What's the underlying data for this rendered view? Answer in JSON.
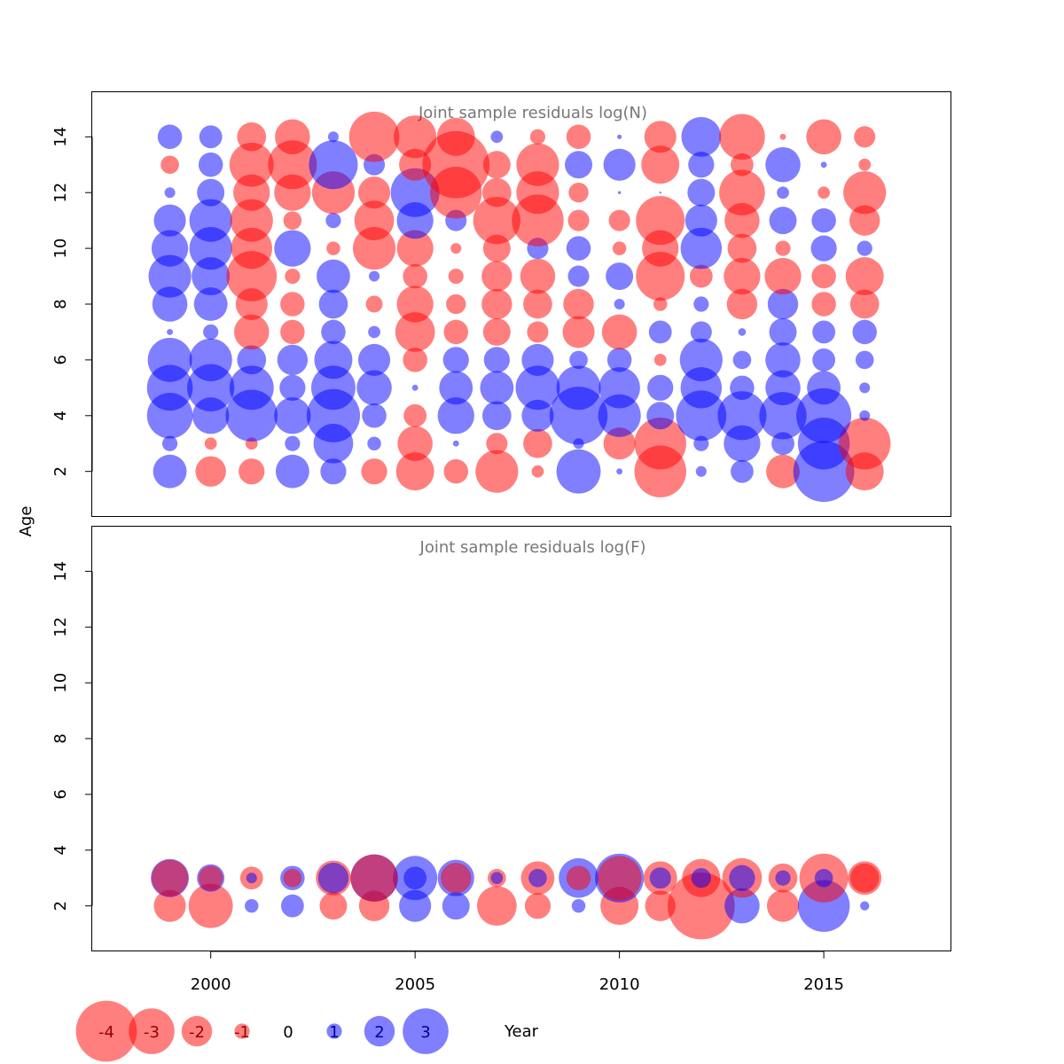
{
  "colors": {
    "negative": "#ff0000",
    "positive": "#0000ff",
    "frame": "#000000",
    "title": "#777777"
  },
  "chart_data": {
    "type": "bubble",
    "xlabel": "Year",
    "ylabel": "Age",
    "xlim": [
      1997.1,
      2018.1
    ],
    "x_ticks": [
      {
        "value": 2000,
        "label": "2000"
      },
      {
        "value": 2005,
        "label": "2005"
      },
      {
        "value": 2010,
        "label": "2010"
      },
      {
        "value": 2015,
        "label": "2015"
      }
    ],
    "y_ticks": [
      {
        "value": 2,
        "label": "2"
      },
      {
        "value": 4,
        "label": "4"
      },
      {
        "value": 6,
        "label": "6"
      },
      {
        "value": 8,
        "label": "8"
      },
      {
        "value": 10,
        "label": "10"
      },
      {
        "value": 12,
        "label": "12"
      },
      {
        "value": 14,
        "label": "14"
      }
    ],
    "ylim": [
      0.4,
      15.6
    ],
    "legend": {
      "placement": "bottom-left",
      "items": [
        {
          "value": -4,
          "label": "-4"
        },
        {
          "value": -3,
          "label": "-3"
        },
        {
          "value": -2,
          "label": "-2"
        },
        {
          "value": -1,
          "label": "-1"
        },
        {
          "value": 0,
          "label": "0"
        },
        {
          "value": 1,
          "label": "1"
        },
        {
          "value": 2,
          "label": "2"
        },
        {
          "value": 3,
          "label": "3"
        }
      ]
    },
    "years": [
      1999,
      2000,
      2001,
      2002,
      2003,
      2004,
      2005,
      2006,
      2007,
      2008,
      2009,
      2010,
      2011,
      2012,
      2013,
      2014,
      2015,
      2016
    ],
    "panels": [
      {
        "title": "Joint sample residuals log(N)",
        "ages": [
          2,
          3,
          4,
          5,
          6,
          7,
          8,
          9,
          10,
          11,
          12,
          13,
          14
        ],
        "residuals": {
          "2": [
            2.2,
            -2.0,
            -1.7,
            2.2,
            1.7,
            -1.7,
            -2.5,
            -1.6,
            -2.8,
            -0.8,
            2.9,
            0.4,
            -3.4,
            0.7,
            1.5,
            -2.2,
            4.0,
            -2.5
          ],
          "3": [
            1.0,
            -0.8,
            -0.8,
            1.0,
            2.6,
            0.9,
            -2.3,
            0.4,
            -1.4,
            -1.9,
            0.7,
            -2.1,
            -3.4,
            1.0,
            2.4,
            1.5,
            3.4,
            -3.4
          ],
          "4": [
            3.0,
            2.4,
            3.4,
            2.4,
            3.5,
            1.6,
            -1.5,
            2.4,
            1.9,
            2.1,
            3.8,
            2.8,
            1.8,
            3.3,
            3.2,
            3.1,
            3.6,
            0.7
          ],
          "5": [
            3.0,
            3.1,
            2.9,
            1.7,
            2.9,
            2.3,
            0.4,
            2.2,
            2.2,
            2.9,
            2.9,
            2.7,
            1.7,
            2.7,
            1.6,
            2.3,
            2.2,
            0.7
          ],
          "6": [
            2.9,
            2.8,
            1.9,
            2.0,
            2.5,
            2.1,
            -1.6,
            1.7,
            1.7,
            2.1,
            1.2,
            1.6,
            -0.8,
            2.8,
            1.2,
            2.3,
            1.5,
            1.2
          ],
          "7": [
            0.4,
            1.0,
            -2.3,
            -1.6,
            1.6,
            0.8,
            -2.6,
            -1.6,
            -1.8,
            -1.4,
            -2.1,
            -2.3,
            1.5,
            1.4,
            0.5,
            1.8,
            1.5,
            1.6
          ],
          "8": [
            2.3,
            2.2,
            -2.1,
            -1.6,
            1.9,
            -1.1,
            -2.4,
            -1.3,
            -2.0,
            -1.9,
            -2.0,
            0.7,
            -0.9,
            1.0,
            -2.0,
            2.0,
            -1.6,
            -1.9
          ],
          "9": [
            2.8,
            2.5,
            -3.3,
            -1.0,
            2.2,
            0.7,
            -1.6,
            -1.0,
            -2.0,
            -2.3,
            1.4,
            1.8,
            -3.2,
            -1.5,
            -2.4,
            -2.4,
            -1.6,
            -2.5
          ],
          "10": [
            2.4,
            2.8,
            -2.7,
            2.4,
            -0.9,
            -2.8,
            -2.4,
            -0.7,
            -1.8,
            1.4,
            1.6,
            -0.9,
            -2.4,
            2.7,
            -1.9,
            -1.0,
            1.7,
            1.0
          ],
          "11": [
            2.1,
            2.8,
            -2.8,
            -1.2,
            1.0,
            -2.6,
            2.4,
            1.4,
            -3.1,
            -3.4,
            -1.4,
            -1.4,
            -3.2,
            2.1,
            -2.3,
            1.8,
            1.6,
            -2.0
          ],
          "12": [
            0.7,
            1.8,
            -2.4,
            -2.4,
            -2.8,
            -2.1,
            3.2,
            -3.4,
            -1.9,
            -2.8,
            -1.3,
            0.2,
            0.1,
            1.8,
            -3.0,
            0.8,
            -0.8,
            -2.8
          ],
          "13": [
            -1.2,
            1.6,
            -2.9,
            -3.2,
            3.2,
            1.4,
            -2.1,
            -4.4,
            -1.8,
            -2.8,
            1.8,
            2.1,
            -2.5,
            1.7,
            -1.5,
            2.3,
            0.4,
            -0.8
          ],
          "14": [
            1.6,
            1.5,
            -1.9,
            -2.3,
            0.7,
            -3.3,
            -2.8,
            -2.5,
            0.8,
            -1.0,
            -1.6,
            0.3,
            -2.1,
            2.6,
            -3.0,
            -0.4,
            -2.3,
            -1.4
          ]
        }
      },
      {
        "title": "Joint sample residuals log(F)",
        "ages": [
          2,
          3
        ],
        "residuals": {
          "2": [
            -2.1,
            -2.9,
            0.9,
            1.5,
            -1.8,
            -2.0,
            2.1,
            1.8,
            -2.6,
            -1.7,
            0.9,
            -2.5,
            -2.0,
            -4.4,
            2.3,
            -2.1,
            3.4,
            0.6
          ],
          "3": [
            2.5,
            1.8,
            -1.5,
            1.6,
            -2.3,
            3.1,
            2.9,
            2.4,
            -1.2,
            -2.2,
            2.6,
            3.2,
            -2.2,
            -2.5,
            -2.6,
            -1.9,
            -3.2,
            -2.2
          ]
        },
        "overlay_residuals": {
          "3": [
            -2.4,
            -1.6,
            0.7,
            -1.2,
            2.0,
            -3.1,
            1.5,
            -2.0,
            0.8,
            1.2,
            -1.6,
            -2.9,
            1.4,
            1.3,
            1.7,
            1.0,
            1.2,
            -1.9
          ]
        }
      }
    ]
  }
}
